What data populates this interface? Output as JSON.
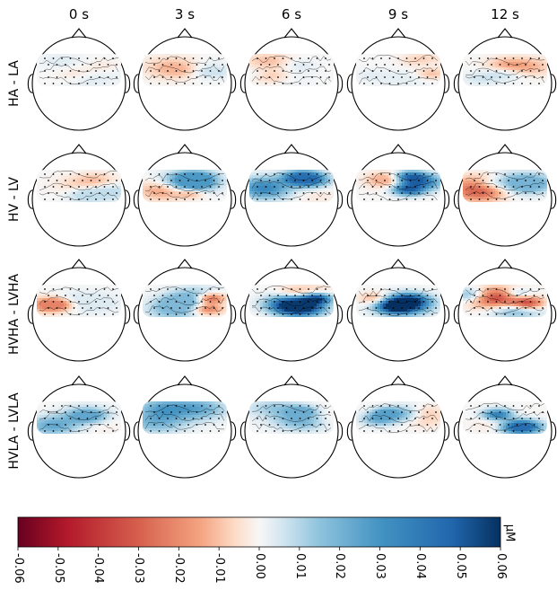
{
  "chart_data": {
    "type": "heatmap",
    "subtype": "scalp topography grid",
    "time_labels": [
      "0 s",
      "3 s",
      "6 s",
      "9 s",
      "12 s"
    ],
    "conditions": [
      "HA - LA",
      "HV - LV",
      "HVHA - LVHA",
      "HVLA - LVLA"
    ],
    "colorbar": {
      "unit": "μM",
      "ticks": [
        "-0.06",
        "-0.05",
        "-0.04",
        "-0.03",
        "-0.02",
        "-0.01",
        "0.00",
        "0.01",
        "0.02",
        "0.03",
        "0.04",
        "0.05",
        "0.06"
      ],
      "range": [
        -0.06,
        0.06
      ],
      "colormap": "RdBu (red = negative, blue = positive)"
    },
    "approx_extrema": [
      [
        [
          -0.006,
          0.004
        ],
        [
          -0.012,
          0.006
        ],
        [
          -0.014,
          0.005
        ],
        [
          -0.013,
          0.004
        ],
        [
          -0.016,
          0.007
        ]
      ],
      [
        [
          -0.012,
          0.008
        ],
        [
          -0.018,
          0.028
        ],
        [
          -0.005,
          0.045
        ],
        [
          -0.012,
          0.05
        ],
        [
          -0.028,
          0.02
        ]
      ],
      [
        [
          -0.022,
          0.004
        ],
        [
          -0.034,
          0.018
        ],
        [
          -0.012,
          0.058
        ],
        [
          -0.016,
          0.06
        ],
        [
          -0.05,
          0.03
        ]
      ],
      [
        [
          -0.003,
          0.024
        ],
        [
          -0.004,
          0.03
        ],
        [
          -0.006,
          0.022
        ],
        [
          -0.016,
          0.026
        ],
        [
          -0.01,
          0.045
        ]
      ]
    ]
  },
  "colors": {
    "negative": "#67001f",
    "positive": "#053061",
    "neutral": "#f7f7f7",
    "outline": "#000000"
  }
}
